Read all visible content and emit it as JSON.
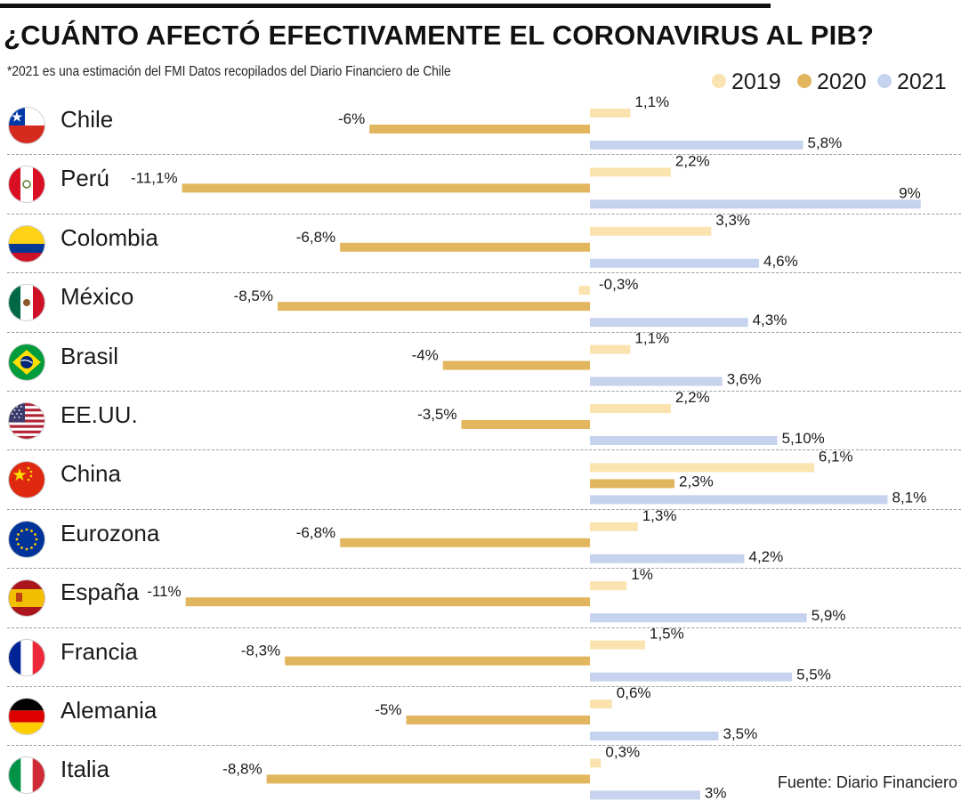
{
  "title": "¿CUÁNTO AFECTÓ EFECTIVAMENTE EL CORONAVIRUS AL PIB?",
  "subtitle": "*2021 es una estimación del FMI Datos recopilados del Diario Financiero de Chile",
  "footer": "Fuente:  Diario Financiero",
  "chart_data": {
    "type": "bar",
    "orientation": "horizontal",
    "grid": false,
    "legend_position": "top-right",
    "categories": [
      "Chile",
      "Perú",
      "Colombia",
      "México",
      "Brasil",
      "EE.UU.",
      "China",
      "Eurozona",
      "España",
      "Francia",
      "Alemania",
      "Italia"
    ],
    "series": [
      {
        "name": "2019",
        "color": "#fbe3b0",
        "values": [
          1.1,
          2.2,
          3.3,
          -0.3,
          1.1,
          2.2,
          6.1,
          1.3,
          1.0,
          1.5,
          0.6,
          0.3
        ],
        "labels": [
          "1,1%",
          "2,2%",
          "3,3%",
          "-0,3%",
          "1,1%",
          "2,2%",
          "6,1%",
          "1,3%",
          "1%",
          "1,5%",
          "0,6%",
          "0,3%"
        ]
      },
      {
        "name": "2020",
        "color": "#e2b65e",
        "values": [
          -6,
          -11.1,
          -6.8,
          -8.5,
          -4,
          -3.5,
          2.3,
          -6.8,
          -11,
          -8.3,
          -5,
          -8.8
        ],
        "labels": [
          "-6%",
          "-11,1%",
          "-6,8%",
          "-8,5%",
          "-4%",
          "-3,5%",
          "2,3%",
          "-6,8%",
          "-11%",
          "-8,3%",
          "-5%",
          "-8,8%"
        ]
      },
      {
        "name": "2021",
        "color": "#c6d3ee",
        "values": [
          5.8,
          9,
          4.6,
          4.3,
          3.6,
          5.1,
          8.1,
          4.2,
          5.9,
          5.5,
          3.5,
          3
        ],
        "labels": [
          "5,8%",
          "9%",
          "4,6%",
          "4,3%",
          "3,6%",
          "5,10%",
          "8,1%",
          "4,2%",
          "5,9%",
          "5,5%",
          "3,5%",
          "3%"
        ]
      }
    ],
    "flag_icons": [
      "chile-flag-icon",
      "peru-flag-icon",
      "colombia-flag-icon",
      "mexico-flag-icon",
      "brazil-flag-icon",
      "usa-flag-icon",
      "china-flag-icon",
      "eu-flag-icon",
      "spain-flag-icon",
      "france-flag-icon",
      "germany-flag-icon",
      "italy-flag-icon"
    ]
  }
}
